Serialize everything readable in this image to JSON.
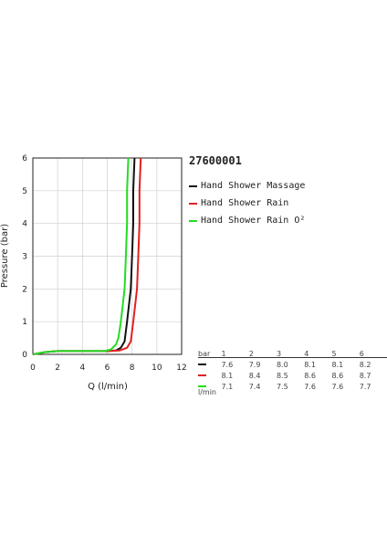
{
  "model_number": "27600001",
  "legend": [
    {
      "name": "Hand Shower Massage",
      "color": "#111111"
    },
    {
      "name": "Hand Shower Rain",
      "color": "#e02020"
    },
    {
      "name": "Hand Shower Rain O²",
      "color": "#22dd22"
    }
  ],
  "table": {
    "pressure_label": "bar",
    "flow_unit": "l/min",
    "pressures": [
      "1",
      "2",
      "3",
      "4",
      "5",
      "6"
    ],
    "rows": [
      {
        "color": "#111111",
        "values": [
          "7.6",
          "7.9",
          "8.0",
          "8.1",
          "8.1",
          "8.2"
        ]
      },
      {
        "color": "#e02020",
        "values": [
          "8.1",
          "8.4",
          "8.5",
          "8.6",
          "8.6",
          "8.7"
        ]
      },
      {
        "color": "#22dd22",
        "values": [
          "7.1",
          "7.4",
          "7.5",
          "7.6",
          "7.6",
          "7.7"
        ]
      }
    ]
  },
  "chart_data": {
    "type": "line",
    "xlabel": "Q (l/min)",
    "ylabel": "Pressure (bar)",
    "xlim": [
      0,
      12
    ],
    "ylim": [
      0,
      6
    ],
    "xticks": [
      "0",
      "2",
      "4",
      "6",
      "8",
      "10",
      "12"
    ],
    "yticks": [
      "0",
      "1",
      "2",
      "3",
      "4",
      "5",
      "6"
    ],
    "grid": true,
    "series": [
      {
        "name": "Hand Shower Massage",
        "color": "#111111",
        "points": [
          [
            0,
            0
          ],
          [
            1,
            0.07
          ],
          [
            2,
            0.1
          ],
          [
            4,
            0.1
          ],
          [
            6,
            0.1
          ],
          [
            6.7,
            0.12
          ],
          [
            7.1,
            0.2
          ],
          [
            7.4,
            0.4
          ],
          [
            7.6,
            1
          ],
          [
            7.9,
            2
          ],
          [
            8.0,
            3
          ],
          [
            8.1,
            4
          ],
          [
            8.1,
            5
          ],
          [
            8.2,
            6
          ]
        ]
      },
      {
        "name": "Hand Shower Rain",
        "color": "#e02020",
        "points": [
          [
            0,
            0
          ],
          [
            1,
            0.07
          ],
          [
            2,
            0.1
          ],
          [
            4,
            0.1
          ],
          [
            6,
            0.1
          ],
          [
            7.0,
            0.12
          ],
          [
            7.6,
            0.2
          ],
          [
            7.9,
            0.4
          ],
          [
            8.1,
            1
          ],
          [
            8.4,
            2
          ],
          [
            8.5,
            3
          ],
          [
            8.6,
            4
          ],
          [
            8.6,
            5
          ],
          [
            8.7,
            6
          ]
        ]
      },
      {
        "name": "Hand Shower Rain O²",
        "color": "#22dd22",
        "points": [
          [
            0,
            0
          ],
          [
            1,
            0.07
          ],
          [
            2,
            0.1
          ],
          [
            4,
            0.1
          ],
          [
            5.8,
            0.1
          ],
          [
            6.3,
            0.15
          ],
          [
            6.7,
            0.3
          ],
          [
            6.9,
            0.5
          ],
          [
            7.1,
            1
          ],
          [
            7.4,
            2
          ],
          [
            7.5,
            3
          ],
          [
            7.6,
            4
          ],
          [
            7.6,
            5
          ],
          [
            7.7,
            6
          ]
        ]
      }
    ]
  }
}
